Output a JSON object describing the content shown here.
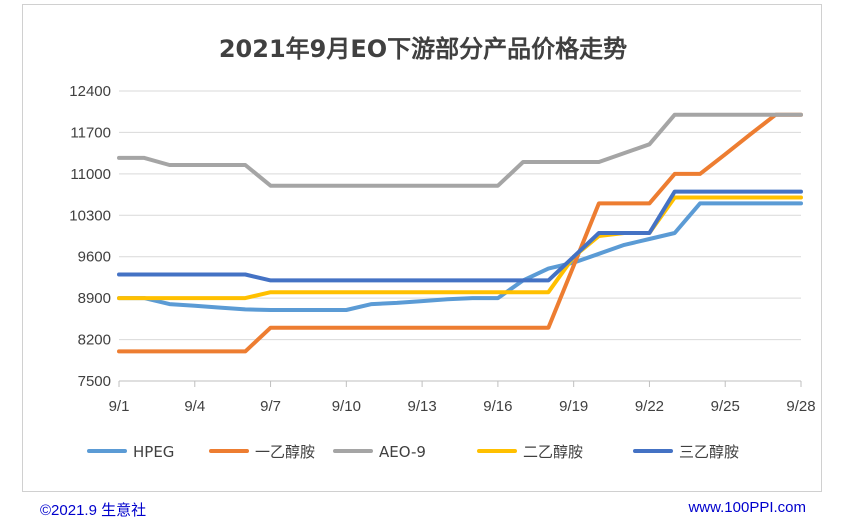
{
  "chart_data": {
    "type": "line",
    "title": "2021年9月EO下游部分产品价格走势",
    "xlabel": "",
    "ylabel": "",
    "ylim": [
      7500,
      12400
    ],
    "yticks": [
      7500,
      8200,
      8900,
      9600,
      10300,
      11000,
      11700,
      12400
    ],
    "xticks": [
      "9/1",
      "9/4",
      "9/7",
      "9/10",
      "9/13",
      "9/16",
      "9/19",
      "9/22",
      "9/25",
      "9/28"
    ],
    "x": [
      1,
      2,
      3,
      4,
      5,
      6,
      7,
      8,
      9,
      10,
      11,
      12,
      13,
      14,
      15,
      16,
      17,
      18,
      19,
      20,
      21,
      22,
      23,
      24,
      25,
      26,
      27,
      28
    ],
    "grid": true,
    "legend_position": "bottom",
    "series": [
      {
        "name": "HPEG",
        "color": "#5b9bd5",
        "values": [
          8900,
          8900,
          8800,
          8770,
          8740,
          8710,
          8700,
          8700,
          8700,
          8700,
          8800,
          8820,
          8850,
          8880,
          8900,
          8900,
          9200,
          9400,
          9500,
          9650,
          9800,
          9900,
          10000,
          10500,
          10500,
          10500,
          10500,
          10500
        ]
      },
      {
        "name": "一乙醇胺",
        "color": "#ed7d31",
        "values": [
          8000,
          8000,
          8000,
          8000,
          8000,
          8000,
          8400,
          8400,
          8400,
          8400,
          8400,
          8400,
          8400,
          8400,
          8400,
          8400,
          8400,
          8400,
          9450,
          10500,
          10500,
          10500,
          11000,
          11000,
          11330,
          11670,
          12000,
          12000
        ]
      },
      {
        "name": "AEO-9",
        "color": "#a5a5a5",
        "values": [
          11270,
          11270,
          11150,
          11150,
          11150,
          11150,
          10800,
          10800,
          10800,
          10800,
          10800,
          10800,
          10800,
          10800,
          10800,
          10800,
          11200,
          11200,
          11200,
          11200,
          11350,
          11500,
          12000,
          12000,
          12000,
          12000,
          12000,
          12000
        ]
      },
      {
        "name": "二乙醇胺",
        "color": "#ffc000",
        "values": [
          8900,
          8900,
          8900,
          8900,
          8900,
          8900,
          9000,
          9000,
          9000,
          9000,
          9000,
          9000,
          9000,
          9000,
          9000,
          9000,
          9000,
          9000,
          9600,
          9950,
          10000,
          10000,
          10600,
          10600,
          10600,
          10600,
          10600,
          10600
        ]
      },
      {
        "name": "三乙醇胺",
        "color": "#4472c4",
        "values": [
          9300,
          9300,
          9300,
          9300,
          9300,
          9300,
          9200,
          9200,
          9200,
          9200,
          9200,
          9200,
          9200,
          9200,
          9200,
          9200,
          9200,
          9200,
          9600,
          10000,
          10000,
          10000,
          10700,
          10700,
          10700,
          10700,
          10700,
          10700
        ]
      }
    ]
  },
  "footer": {
    "left": "©2021.9  生意社",
    "right": "www.100PPI.com"
  }
}
